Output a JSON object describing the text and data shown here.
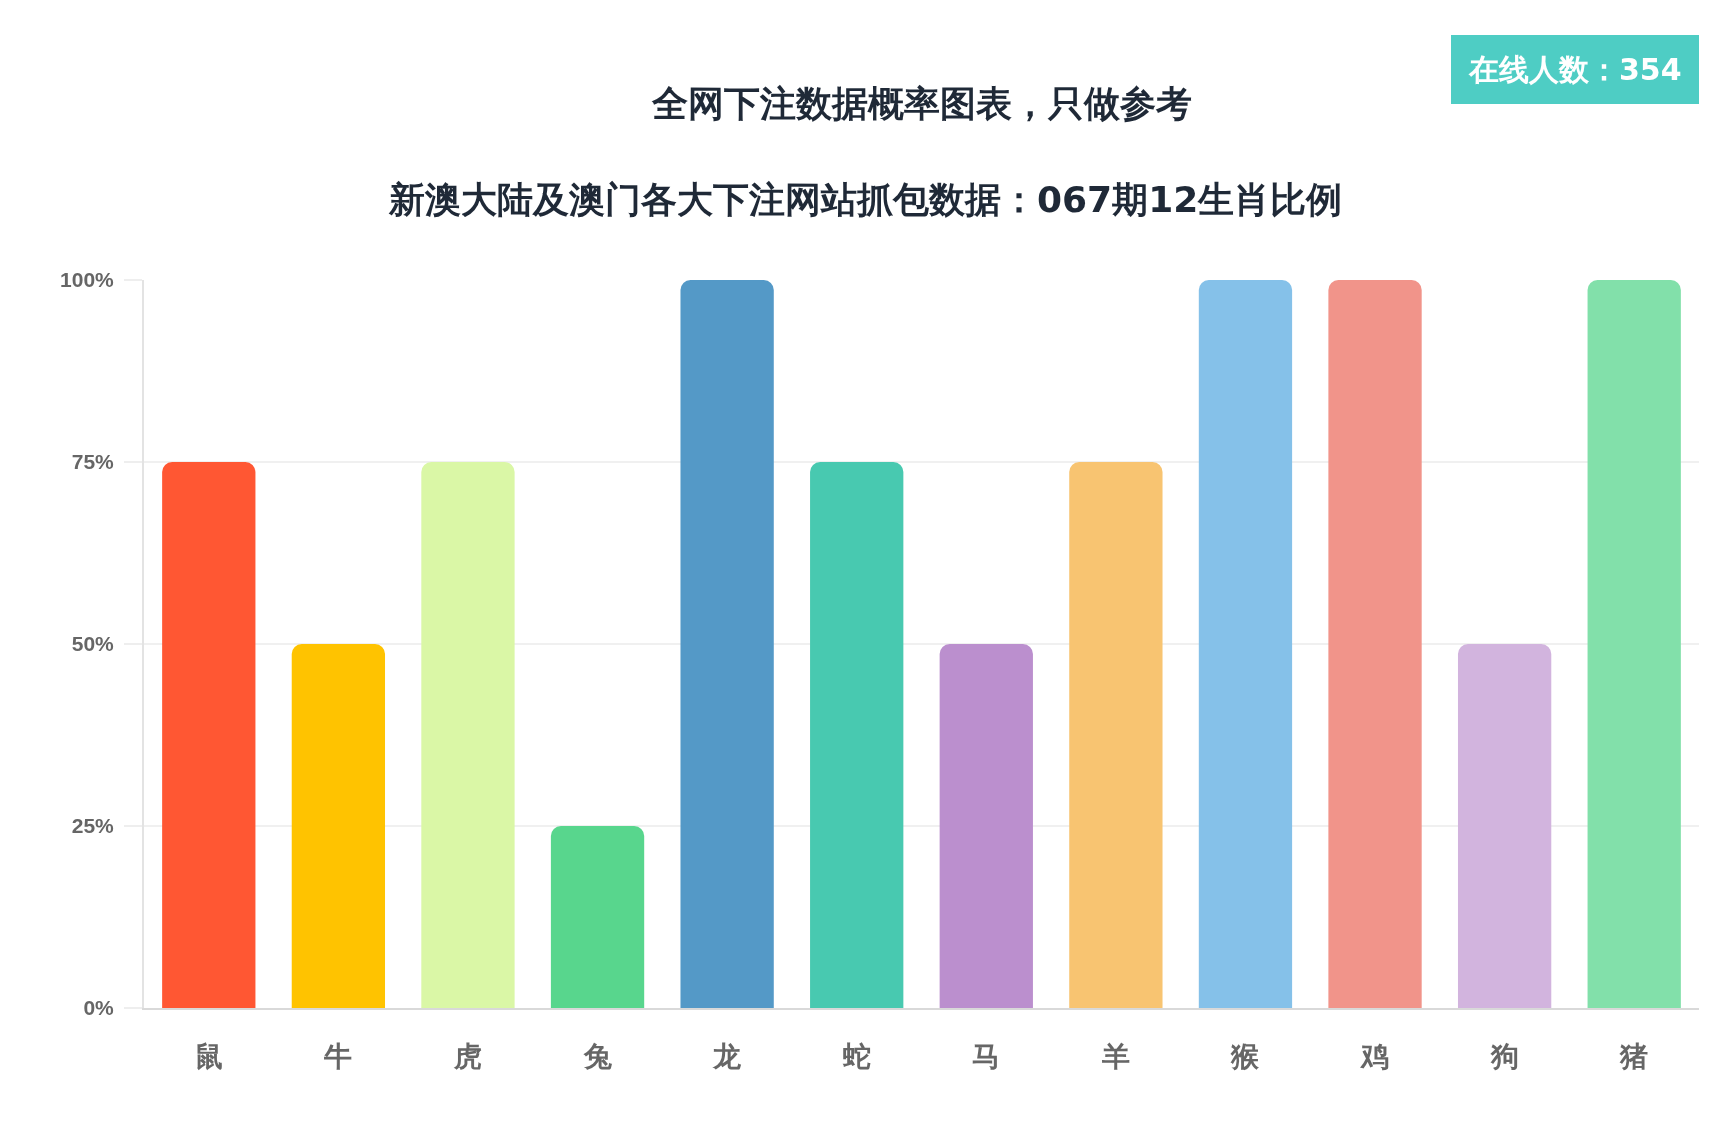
{
  "chart_data": {
    "type": "bar",
    "title": "全网下注数据概率图表，只做参考",
    "subtitle": "新澳大陆及澳门各大下注网站抓包数据：067期12生肖比例",
    "annotations": [
      "在线人数：354"
    ],
    "categories": [
      "鼠",
      "牛",
      "虎",
      "兔",
      "龙",
      "蛇",
      "马",
      "羊",
      "猴",
      "鸡",
      "狗",
      "猪"
    ],
    "values": [
      75,
      50,
      75,
      25,
      100,
      75,
      50,
      75,
      100,
      100,
      50,
      100
    ],
    "colors": [
      "#ff5733",
      "#ffc300",
      "#daf7a6",
      "#58d68d",
      "#5499c7",
      "#48c9b0",
      "#bb8fce",
      "#f8c471",
      "#85c1e9",
      "#f1948a",
      "#d2b4de",
      "#82e0aa"
    ],
    "ylim": [
      0,
      100
    ],
    "yticks": [
      {
        "value": 0,
        "label": "0%"
      },
      {
        "value": 25,
        "label": "25%"
      },
      {
        "value": 50,
        "label": "50%"
      },
      {
        "value": 75,
        "label": "75%"
      },
      {
        "value": 100,
        "label": "100%"
      }
    ],
    "grid": "y"
  }
}
